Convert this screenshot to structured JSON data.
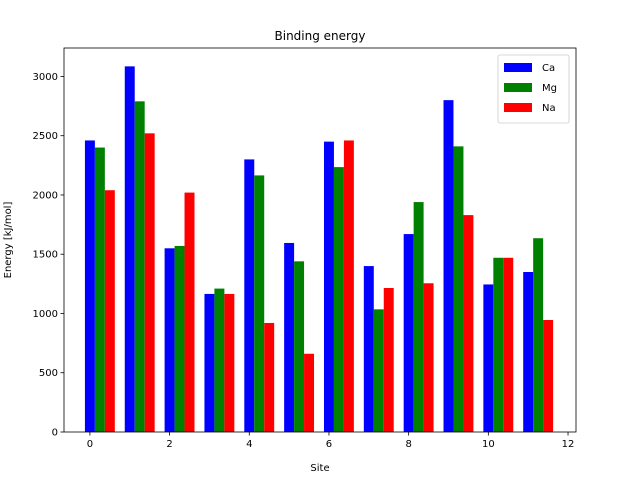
{
  "chart_data": {
    "type": "bar",
    "title": "Binding energy",
    "xlabel": "Site",
    "ylabel": "Energy [kJ/mol]",
    "x": [
      0,
      1,
      2,
      3,
      4,
      5,
      6,
      7,
      8,
      9,
      10,
      11
    ],
    "xlim": [
      -0.65,
      12.2
    ],
    "ylim": [
      0,
      3240
    ],
    "xticks": [
      0,
      2,
      4,
      6,
      8,
      10,
      12
    ],
    "yticks": [
      0,
      500,
      1000,
      1500,
      2000,
      2500,
      3000
    ],
    "bar_width": 0.25,
    "legend_position": "top-right",
    "series": [
      {
        "name": "Ca",
        "color": "#0000ff",
        "values": [
          2460,
          3085,
          1550,
          1165,
          2300,
          1595,
          2450,
          1400,
          1670,
          2800,
          1245,
          1350
        ]
      },
      {
        "name": "Mg",
        "color": "#008000",
        "values": [
          2400,
          2790,
          1570,
          1210,
          2165,
          1440,
          2235,
          1035,
          1940,
          2410,
          1470,
          1635
        ]
      },
      {
        "name": "Na",
        "color": "#ff0000",
        "values": [
          2040,
          2520,
          2020,
          1165,
          920,
          660,
          2460,
          1215,
          1255,
          1830,
          1470,
          945
        ]
      }
    ]
  }
}
